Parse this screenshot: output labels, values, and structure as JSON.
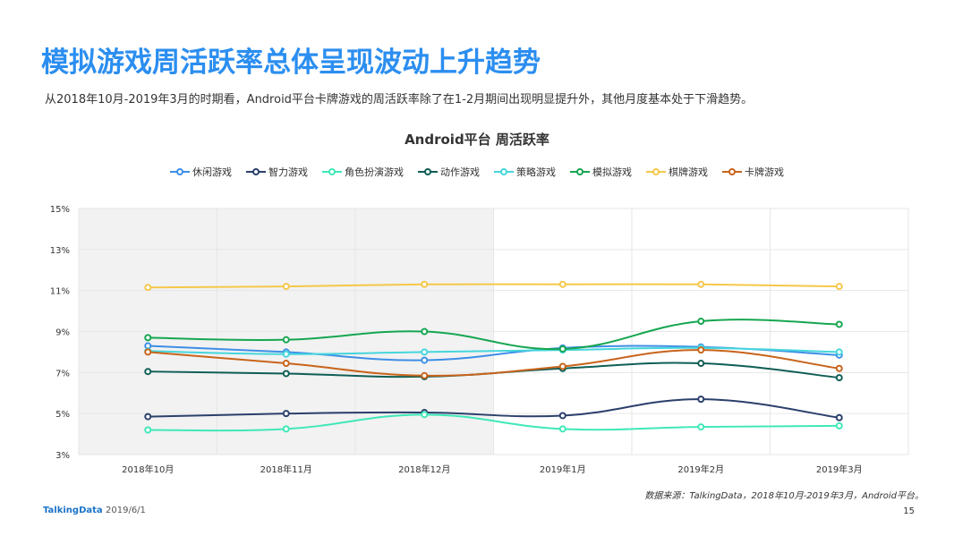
{
  "header": {
    "title": "模拟游戏周活跃率总体呈现波动上升趋势",
    "subtitle": "从2018年10月-2019年3月的时期看，Android平台卡牌游戏的周活跃率除了在1-2月期间出现明显提升外，其他月度基本处于下滑趋势。"
  },
  "chart_data": {
    "type": "line",
    "title": "Android平台  周活跃率",
    "categories": [
      "2018年10月",
      "2018年11月",
      "2018年12月",
      "2019年1月",
      "2019年2月",
      "2019年3月"
    ],
    "y_ticks": [
      "3%",
      "5%",
      "7%",
      "9%",
      "11%",
      "13%",
      "15%"
    ],
    "ylim": [
      3,
      15
    ],
    "y_unit": "%",
    "legend_position": "top",
    "grid": true,
    "shaded_categories": [
      "2018年10月",
      "2018年11月",
      "2018年12月"
    ],
    "series": [
      {
        "name": "休闲游戏",
        "color": "#3d8ee6",
        "values": [
          8.3,
          8.0,
          7.6,
          8.2,
          8.25,
          7.85
        ]
      },
      {
        "name": "智力游戏",
        "color": "#2b3f6b",
        "values": [
          4.85,
          5.0,
          5.05,
          4.9,
          5.7,
          4.8
        ]
      },
      {
        "name": "角色扮演游戏",
        "color": "#3fe8b8",
        "values": [
          4.2,
          4.25,
          4.95,
          4.25,
          4.35,
          4.4
        ]
      },
      {
        "name": "动作游戏",
        "color": "#0f5e55",
        "values": [
          7.05,
          6.95,
          6.8,
          7.2,
          7.45,
          6.75
        ]
      },
      {
        "name": "策略游戏",
        "color": "#45d6dc",
        "values": [
          8.05,
          7.9,
          8.0,
          8.1,
          8.2,
          8.0
        ]
      },
      {
        "name": "模拟游戏",
        "color": "#16a650",
        "values": [
          8.7,
          8.6,
          9.0,
          8.15,
          9.5,
          9.35
        ]
      },
      {
        "name": "棋牌游戏",
        "color": "#f5c84a",
        "values": [
          11.15,
          11.2,
          11.3,
          11.3,
          11.3,
          11.2
        ]
      },
      {
        "name": "卡牌游戏",
        "color": "#c8641c",
        "values": [
          8.0,
          7.45,
          6.85,
          7.3,
          8.1,
          7.2
        ]
      }
    ]
  },
  "footer": {
    "source": "数据来源：TalkingData，2018年10月-2019年3月，Android平台。",
    "brand": "TalkingData",
    "date": "2019/6/1",
    "page": "15"
  }
}
